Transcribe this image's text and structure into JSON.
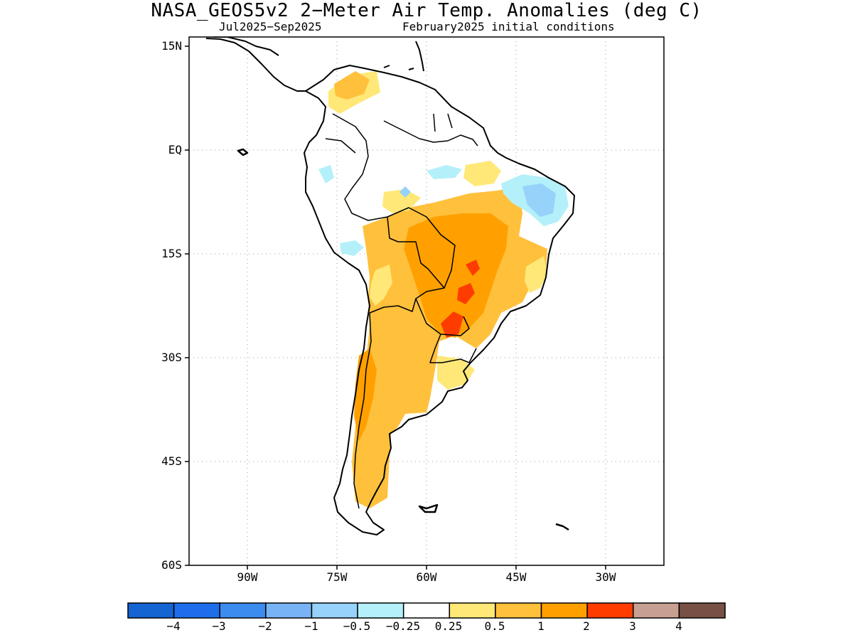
{
  "title": "NASA_GEOS5v2 2−Meter Air Temp. Anomalies (deg C)",
  "subtitle_period": "Jul2025−Sep2025",
  "subtitle_ic": "February2025 initial conditions",
  "lat_ticks": [
    {
      "label": "15N",
      "value": 15
    },
    {
      "label": "EQ",
      "value": 0
    },
    {
      "label": "15S",
      "value": -15
    },
    {
      "label": "30S",
      "value": -30
    },
    {
      "label": "45S",
      "value": -45
    },
    {
      "label": "60S",
      "value": -60
    }
  ],
  "lon_ticks": [
    {
      "label": "90W",
      "value": -90
    },
    {
      "label": "75W",
      "value": -75
    },
    {
      "label": "60W",
      "value": -60
    },
    {
      "label": "45W",
      "value": -45
    },
    {
      "label": "30W",
      "value": -30
    }
  ],
  "colorbar": {
    "colors": [
      "#1464d2",
      "#1e6eeb",
      "#3c8cf0",
      "#78b4f5",
      "#96d2fa",
      "#b4f0fa",
      "#ffffff",
      "#ffe878",
      "#ffc03c",
      "#ffa000",
      "#ff3c00",
      "#c8a092",
      "#785046"
    ],
    "labels": [
      "−4",
      "−3",
      "−2",
      "−1",
      "−0.5",
      "−0.25",
      "0.25",
      "0.5",
      "1",
      "2",
      "3",
      "4"
    ]
  }
}
